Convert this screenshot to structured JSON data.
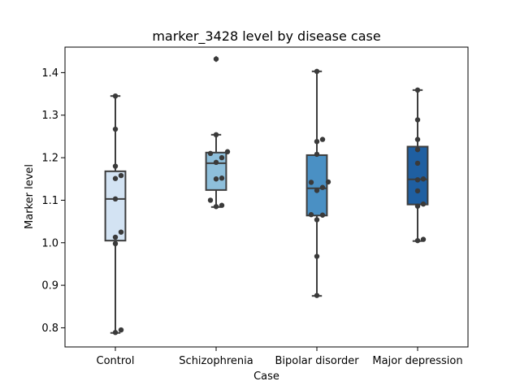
{
  "chart_data": {
    "type": "box",
    "title": "marker_3428 level by disease case",
    "xlabel": "Case",
    "ylabel": "Marker level",
    "ylim": [
      0.755,
      1.46
    ],
    "yticks": [
      0.8,
      0.9,
      1.0,
      1.1,
      1.2,
      1.3,
      1.4
    ],
    "ytick_labels": [
      "0.8",
      "0.9",
      "1.0",
      "1.1",
      "1.2",
      "1.3",
      "1.4"
    ],
    "grid": false,
    "categories": [
      "Control",
      "Schizophrenia",
      "Bipolar disorder",
      "Major depression"
    ],
    "box_colors": [
      "#d3e3f3",
      "#8ebfdb",
      "#4a90c4",
      "#1f5fa1"
    ],
    "point_color": "#3a3a3a",
    "boxes": [
      {
        "q1": 1.005,
        "median": 1.103,
        "q3": 1.168,
        "whisker_low": 0.788,
        "whisker_high": 1.345,
        "fliers": []
      },
      {
        "q1": 1.124,
        "median": 1.187,
        "q3": 1.212,
        "whisker_low": 1.084,
        "whisker_high": 1.254,
        "fliers": [
          1.432
        ]
      },
      {
        "q1": 1.064,
        "median": 1.128,
        "q3": 1.206,
        "whisker_low": 0.875,
        "whisker_high": 1.403,
        "fliers": []
      },
      {
        "q1": 1.09,
        "median": 1.149,
        "q3": 1.226,
        "whisker_low": 1.004,
        "whisker_high": 1.359,
        "fliers": []
      }
    ],
    "points": [
      [
        1.345,
        1.267,
        1.18,
        1.158,
        1.151,
        1.103,
        1.025,
        1.013,
        0.998,
        0.795,
        0.789
      ],
      [
        1.432,
        1.254,
        1.214,
        1.21,
        1.2,
        1.189,
        1.152,
        1.15,
        1.1,
        1.088,
        1.085
      ],
      [
        1.403,
        1.243,
        1.238,
        1.208,
        1.143,
        1.142,
        1.13,
        1.123,
        1.066,
        1.065,
        1.054,
        0.968,
        0.876
      ],
      [
        1.359,
        1.289,
        1.243,
        1.219,
        1.187,
        1.15,
        1.148,
        1.122,
        1.091,
        1.086,
        1.008,
        1.005
      ]
    ]
  }
}
